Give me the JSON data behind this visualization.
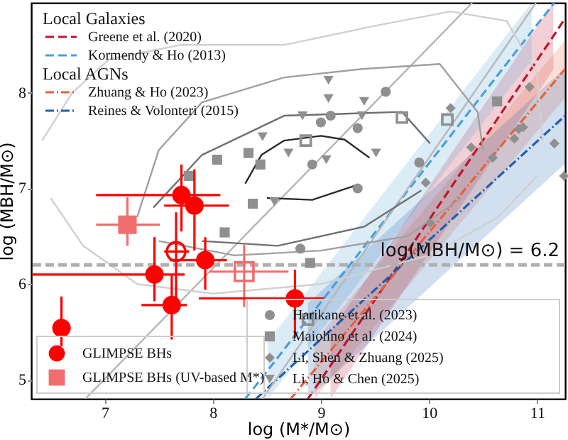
{
  "chart_data": {
    "type": "scatter",
    "xlabel": "log (M*/M⊙)",
    "ylabel": "log (MBH/M⊙)",
    "xlim": [
      6.32,
      11.26
    ],
    "ylim": [
      4.8,
      8.94
    ],
    "xticks": [
      7,
      8,
      9,
      10,
      11
    ],
    "yticks": [
      5,
      6,
      7,
      8
    ],
    "grid": false,
    "legend": "left",
    "annotations": [
      "Local Galaxies",
      "Local AGNs"
    ],
    "ref_lines": [
      {
        "axis": "y",
        "value": 6.2,
        "label": "log(MBH/M⊙) = 6.2",
        "color": "#b0b0b0",
        "line_style": "dashed"
      }
    ],
    "series": [
      {
        "type": "line",
        "name": "Greene et al. (2020)",
        "color": "#c0142c",
        "line_style": "dashed",
        "x": [
          8.88,
          9.09,
          11.15,
          11.26
        ],
        "values": [
          4.8,
          5.15,
          8.59,
          8.78
        ],
        "lower": [
          null,
          4.8,
          8.24,
          null
        ],
        "upper": [
          null,
          5.5,
          8.94,
          null
        ]
      },
      {
        "type": "line",
        "name": "Kormendy & Ho (2013)",
        "color": "#4a9fd8",
        "line_style": "dashed",
        "x": [
          8.3,
          8.51,
          10.95,
          11.16
        ],
        "values": [
          4.8,
          5.1,
          8.64,
          8.94
        ],
        "lower": [
          null,
          4.8,
          8.34,
          null
        ],
        "upper": [
          null,
          5.4,
          8.94,
          null
        ]
      },
      {
        "type": "line",
        "name": "Zhuang & Ho (2023)",
        "color": "#e8603c",
        "line_style": "dashdot",
        "x": [
          8.72,
          8.94,
          11.26
        ],
        "values": [
          4.8,
          5.1,
          8.25
        ],
        "lower": [
          null,
          4.8,
          7.95
        ],
        "upper": [
          null,
          5.4,
          8.55
        ]
      },
      {
        "type": "line",
        "name": "Reines & Volonteri (2015)",
        "color": "#1f5fb0",
        "line_style": "dashdot",
        "x": [
          8.4,
          8.88,
          11.26
        ],
        "values": [
          4.8,
          5.3,
          7.76
        ],
        "lower": [
          null,
          4.8,
          7.26
        ],
        "upper": [
          null,
          5.8,
          8.26
        ]
      },
      {
        "type": "line",
        "color": "#b5b5b5",
        "line_style": "solid",
        "x": [
          6.82,
          10.4
        ],
        "values": [
          4.8,
          8.94
        ]
      },
      {
        "type": "line",
        "color": "#b8b8b8",
        "line_style": "solid",
        "x": [
          8.46,
          10.99
        ],
        "values": [
          4.8,
          8.94
        ]
      },
      {
        "type": "line",
        "color": "#d0d0d0",
        "line_style": "solid",
        "x": [
          6.42,
          6.7,
          7.04,
          7.7,
          8.66,
          9.5,
          10.2,
          10.72,
          11.0,
          11.05
        ],
        "values": [
          7.5,
          8.0,
          8.35,
          8.5,
          8.5,
          8.7,
          8.85,
          8.75,
          8.2,
          7.5
        ]
      },
      {
        "type": "line",
        "color": "#d0d0d0",
        "line_style": "solid",
        "x": [
          6.5,
          6.8,
          7.3,
          8.0,
          9.0,
          10.0,
          10.63,
          11.0
        ],
        "values": [
          6.9,
          6.4,
          6.0,
          5.9,
          6.0,
          6.3,
          6.69,
          7.13
        ]
      },
      {
        "type": "line",
        "color": "#a0a0a0",
        "line_style": "solid",
        "x": [
          7.3,
          7.5,
          7.9,
          8.66,
          9.4,
          10.1,
          10.45,
          10.5
        ],
        "values": [
          6.7,
          7.4,
          7.9,
          8.16,
          8.25,
          8.3,
          7.8,
          7.4
        ]
      },
      {
        "type": "line",
        "color": "#a0a0a0",
        "line_style": "solid",
        "x": [
          7.5,
          8.2,
          9.0,
          9.8,
          10.3
        ],
        "values": [
          6.45,
          6.3,
          6.35,
          6.5,
          6.9
        ]
      },
      {
        "type": "line",
        "color": "#707070",
        "line_style": "solid",
        "x": [
          7.45,
          7.9,
          8.66,
          9.75,
          10.01
        ],
        "values": [
          6.8,
          7.35,
          7.76,
          7.8,
          7.47
        ]
      },
      {
        "type": "line",
        "color": "#707070",
        "line_style": "solid",
        "x": [
          7.9,
          8.6,
          9.4,
          9.93
        ],
        "values": [
          6.45,
          6.4,
          6.6,
          6.98
        ]
      },
      {
        "type": "line",
        "color": "#2a2a2a",
        "line_style": "solid",
        "x": [
          8.3,
          8.45,
          8.66,
          9.0,
          9.22,
          9.45
        ],
        "values": [
          7.05,
          7.35,
          7.5,
          7.55,
          7.51,
          7.32
        ]
      },
      {
        "type": "line",
        "color": "#2a2a2a",
        "line_style": "solid",
        "x": [
          8.5,
          8.92,
          9.32
        ],
        "values": [
          6.9,
          6.88,
          7.03
        ]
      },
      {
        "name": "Harikane et al. (2023)",
        "color": "#8f8f8f",
        "marker": "circle",
        "x": [
          9.6,
          9.09,
          9.34,
          9.0,
          8.92,
          9.34,
          9.91,
          8.81
        ],
        "values": [
          8.01,
          7.76,
          7.63,
          7.69,
          7.25,
          7.0,
          7.27,
          6.37
        ]
      },
      {
        "name": "Maiolino et al. (2024)",
        "color": "#8f8f8f",
        "marker": "square",
        "x": [
          8.04,
          8.33,
          8.44,
          8.37,
          7.78,
          8.11,
          10.63,
          8.9
        ],
        "values": [
          7.3,
          7.37,
          7.25,
          6.84,
          7.13,
          6.54,
          7.91,
          6.22
        ]
      },
      {
        "color": "#8f8f8f",
        "marker": "square-open",
        "x": [
          9.75,
          10.17,
          8.86,
          8.88
        ],
        "values": [
          7.74,
          7.72,
          7.5,
          5.63
        ]
      },
      {
        "name": "Li, Shen & Zhuang (2025)",
        "color": "#8f8f8f",
        "marker": "diamond",
        "x": [
          10.2,
          10.39,
          10.59,
          9.97,
          10.93,
          10.83,
          10.87,
          11.16,
          10.79,
          10.01,
          11.25
        ],
        "values": [
          7.84,
          7.43,
          7.32,
          7.06,
          8.06,
          7.62,
          7.64,
          7.47,
          7.52,
          6.64,
          7.13
        ]
      },
      {
        "name": "Li, Ho & Chen (2025)",
        "color": "#8f8f8f",
        "marker": "triangle-down",
        "x": [
          9.07,
          9.07,
          9.4,
          9.38,
          9.51,
          8.7,
          8.83,
          9.05,
          8.46,
          8.57
        ],
        "values": [
          8.13,
          7.94,
          7.91,
          7.76,
          7.37,
          7.37,
          7.76,
          7.3,
          7.54,
          6.86
        ]
      },
      {
        "name": "GLIMPSE BHs (UV-based M*)",
        "color": "#f26d6d",
        "marker": "square",
        "x": [
          7.21
        ],
        "values": [
          6.62
        ],
        "errors": [
          [
            6.4,
            6.91
          ]
        ],
        "xerrors": [
          [
            6.92,
            7.51
          ]
        ]
      },
      {
        "color": "#f26d6d",
        "marker": "square-open",
        "x": [
          8.29
        ],
        "values": [
          6.13
        ],
        "errors": [
          [
            5.76,
            6.41
          ]
        ],
        "xerrors": [
          [
            7.97,
            8.7
          ]
        ]
      },
      {
        "color": "#ff0000",
        "marker": "circle-open",
        "x": [
          7.66
        ],
        "values": [
          6.34
        ],
        "errors": [
          [
            5.85,
            6.75
          ]
        ],
        "xerrors": [
          [
            7.55,
            7.78
          ]
        ]
      },
      {
        "name": "GLIMPSE BHs",
        "color": "#ff0000",
        "marker": "circle",
        "x": [
          6.6,
          7.46,
          7.62,
          7.93,
          7.71,
          7.83,
          8.76
        ],
        "values": [
          5.54,
          6.1,
          5.78,
          6.25,
          6.93,
          6.82,
          5.85
        ],
        "errors": [
          [
            5.35,
            5.87
          ],
          [
            5.82,
            6.49
          ],
          [
            5.42,
            6.09
          ],
          [
            5.94,
            6.49
          ],
          [
            6.55,
            7.25
          ],
          [
            6.35,
            7.2
          ],
          [
            5.44,
            6.15
          ]
        ],
        "xerrors": [
          null,
          [
            6.33,
            7.74
          ],
          [
            7.34,
            7.76
          ],
          [
            7.6,
            8.13
          ],
          [
            6.92,
            8.07
          ],
          [
            7.55,
            8.15
          ],
          [
            7.87,
            9.03
          ]
        ]
      }
    ]
  }
}
